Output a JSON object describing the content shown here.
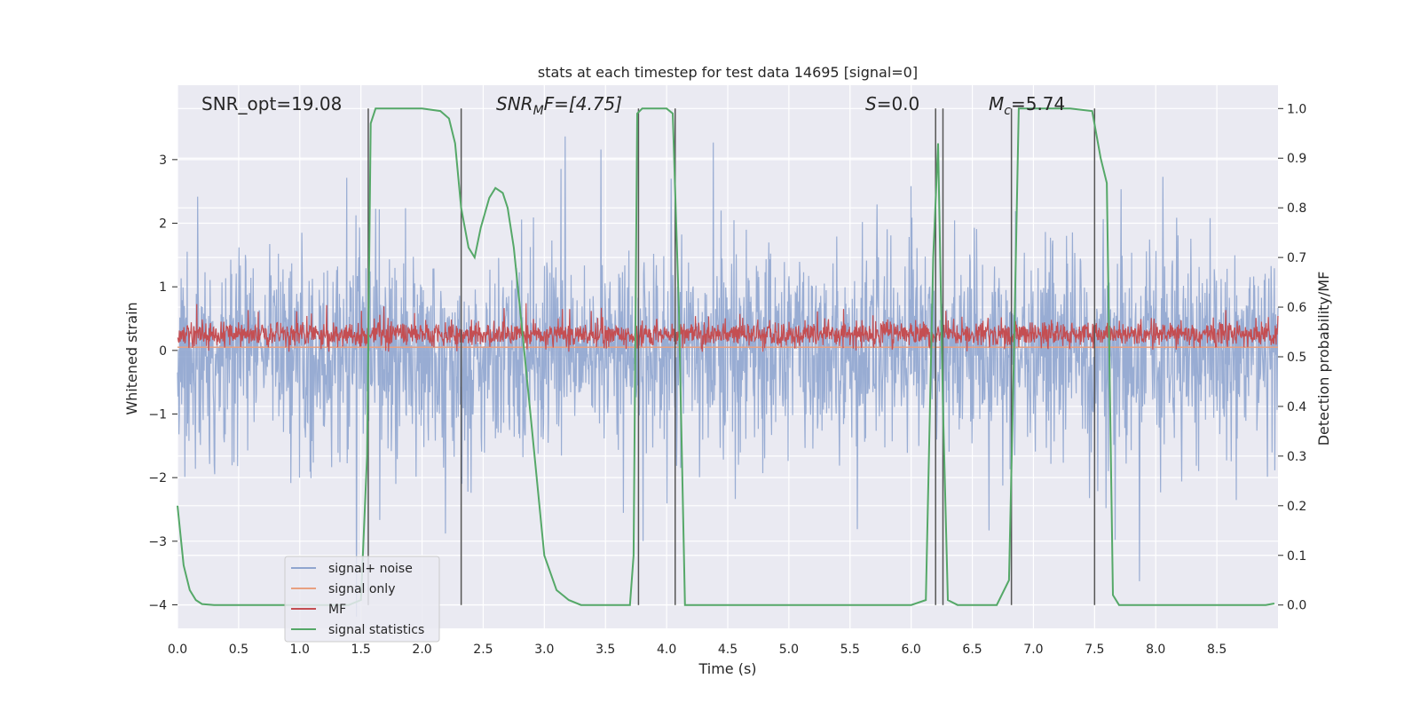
{
  "chart_data": {
    "type": "line",
    "title": "stats at each timestep for test data 14695 [signal=0]",
    "xlabel": "Time (s)",
    "ylabel": "Whitened strain",
    "ylabel_right": "Detection probability/MF",
    "xlim": [
      0,
      9.0
    ],
    "ylim": [
      -4.37,
      4.17
    ],
    "ylim_right": [
      -0.047,
      1.047
    ],
    "x_ticks": [
      "0.0",
      "0.5",
      "1.0",
      "1.5",
      "2.0",
      "2.5",
      "3.0",
      "3.5",
      "4.0",
      "4.5",
      "5.0",
      "5.5",
      "6.0",
      "6.5",
      "7.0",
      "7.5",
      "8.0",
      "8.5"
    ],
    "y_ticks": [
      "3",
      "2",
      "1",
      "0",
      "−1",
      "−2",
      "−3",
      "−4"
    ],
    "y_right_ticks": [
      "1.0",
      "0.9",
      "0.8",
      "0.7",
      "0.6",
      "0.5",
      "0.4",
      "0.3",
      "0.2",
      "0.1",
      "0.0"
    ],
    "annotations": {
      "snr_opt": "SNR_opt=19.08",
      "snr_mf_prefix": "SNR",
      "snr_mf_sub": "M",
      "snr_mf_suffix": "F=[4.75]",
      "s_label": "S",
      "s_value": "=0.0",
      "mc_label": "M",
      "mc_sub": "c",
      "mc_value": "=5.74"
    },
    "series": [
      {
        "name": "signal+ noise",
        "color": "#8fa5cf",
        "description": "whitened noise, approx range -3.5 to 3.5"
      },
      {
        "name": "signal only",
        "color": "#e8a080",
        "values_constant": 0.05
      },
      {
        "name": "MF",
        "color": "#c44e52",
        "description": "approx range 0.0 to 0.6"
      },
      {
        "name": "signal statistics",
        "color": "#55a868",
        "x": [
          0.0,
          0.05,
          0.1,
          0.15,
          0.2,
          0.3,
          0.5,
          0.8,
          1.0,
          1.2,
          1.4,
          1.5,
          1.55,
          1.58,
          1.62,
          1.8,
          2.0,
          2.15,
          2.22,
          2.27,
          2.32,
          2.38,
          2.43,
          2.48,
          2.55,
          2.6,
          2.66,
          2.7,
          2.75,
          2.8,
          2.9,
          3.0,
          3.1,
          3.2,
          3.3,
          3.5,
          3.7,
          3.73,
          3.76,
          3.8,
          3.9,
          4.0,
          4.05,
          4.1,
          4.15,
          4.2,
          4.3,
          4.5,
          5.0,
          5.5,
          6.0,
          6.12,
          6.18,
          6.22,
          6.26,
          6.3,
          6.38,
          6.5,
          6.7,
          6.8,
          6.84,
          6.88,
          6.92,
          7.0,
          7.3,
          7.48,
          7.55,
          7.6,
          7.65,
          7.7,
          7.8,
          8.0,
          8.5,
          8.9,
          8.97
        ],
        "values": [
          0.2,
          0.08,
          0.03,
          0.01,
          0.002,
          0.0,
          0.0,
          0.0,
          0.0,
          0.0,
          0.0,
          0.01,
          0.3,
          0.97,
          1.0,
          1.0,
          1.0,
          0.995,
          0.98,
          0.93,
          0.8,
          0.72,
          0.7,
          0.76,
          0.82,
          0.84,
          0.83,
          0.8,
          0.72,
          0.6,
          0.35,
          0.1,
          0.03,
          0.01,
          0.0,
          0.0,
          0.0,
          0.1,
          0.99,
          1.0,
          1.0,
          1.0,
          0.99,
          0.6,
          0.0,
          0.0,
          0.0,
          0.0,
          0.0,
          0.0,
          0.0,
          0.01,
          0.7,
          0.93,
          0.4,
          0.01,
          0.0,
          0.0,
          0.0,
          0.05,
          0.5,
          1.0,
          1.0,
          1.0,
          1.0,
          0.995,
          0.9,
          0.85,
          0.02,
          0.0,
          0.0,
          0.0,
          0.0,
          0.0,
          0.003
        ]
      }
    ],
    "vertical_lines": [
      1.56,
      2.32,
      3.77,
      4.07,
      6.2,
      6.26,
      6.82,
      7.5
    ],
    "legend": {
      "position": "lower-left"
    },
    "grid": true
  }
}
